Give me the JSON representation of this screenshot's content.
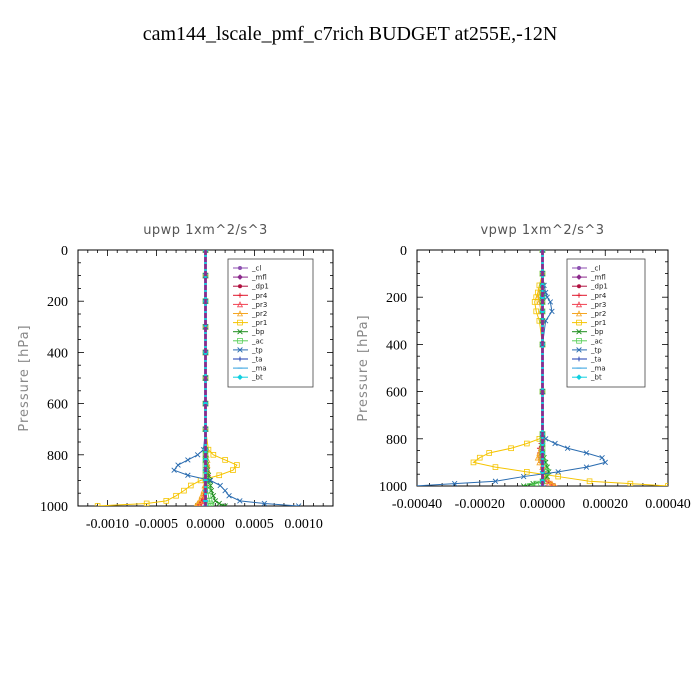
{
  "page_title": "cam144_lscale_pmf_c7rich  BUDGET at255E,-12N",
  "legend_entries": [
    {
      "label": "_cl",
      "color": "#8c4fb0",
      "marker": "dot"
    },
    {
      "label": "_mfl",
      "color": "#8c2a8c",
      "marker": "diamond"
    },
    {
      "label": "_dp1",
      "color": "#b01040",
      "marker": "dot"
    },
    {
      "label": "_pr4",
      "color": "#e0152a",
      "marker": "plus"
    },
    {
      "label": "_pr3",
      "color": "#f04050",
      "marker": "triangle"
    },
    {
      "label": "_pr2",
      "color": "#f5a623",
      "marker": "triangle"
    },
    {
      "label": "_pr1",
      "color": "#f5c400",
      "marker": "square"
    },
    {
      "label": "_bp",
      "color": "#1a8c1a",
      "marker": "x"
    },
    {
      "label": "_ac",
      "color": "#5ad05a",
      "marker": "square"
    },
    {
      "label": "_tp",
      "color": "#2a6cb0",
      "marker": "x"
    },
    {
      "label": "_ta",
      "color": "#1a3ab0",
      "marker": "plus"
    },
    {
      "label": "_ma",
      "color": "#30a0e0",
      "marker": "dash"
    },
    {
      "label": "_bt",
      "color": "#10d0e0",
      "marker": "diamond"
    }
  ],
  "chart_data": [
    {
      "type": "line",
      "title": "upwp   1xm^2/s^3",
      "ylabel": "Pressure  [hPa]",
      "xlabel": "",
      "xlim": [
        -0.0013,
        0.0013
      ],
      "ylim": [
        1000,
        0
      ],
      "xticks": [
        "-0.0010",
        "-0.0005",
        "0.0000",
        "0.0005",
        "0.0010"
      ],
      "xtick_values": [
        -0.001,
        -0.0005,
        0,
        0.0005,
        0.001
      ],
      "yticks": [
        "0",
        "200",
        "400",
        "600",
        "800",
        "1000"
      ],
      "ytick_values": [
        0,
        200,
        400,
        600,
        800,
        1000
      ],
      "legend": "top-right",
      "y": [
        0,
        100,
        200,
        300,
        400,
        500,
        600,
        700,
        780,
        800,
        820,
        840,
        860,
        880,
        900,
        920,
        940,
        960,
        980,
        990,
        1000
      ],
      "series": [
        {
          "name": "_cl",
          "values": [
            0,
            0,
            0,
            0,
            0,
            0,
            0,
            0,
            0,
            0,
            0,
            0,
            0,
            0,
            0,
            0,
            0,
            0,
            0,
            0,
            0
          ]
        },
        {
          "name": "_mfl",
          "values": [
            0,
            0,
            0,
            0,
            0,
            0,
            0,
            0,
            0,
            0,
            0,
            0,
            0,
            0,
            0,
            0,
            0,
            0,
            0,
            0,
            0
          ]
        },
        {
          "name": "_dp1",
          "values": [
            0,
            0,
            0,
            0,
            0,
            0,
            0,
            0,
            0,
            0,
            0,
            0,
            0,
            0,
            0,
            0,
            0,
            0,
            0,
            0,
            0
          ]
        },
        {
          "name": "_pr4",
          "values": [
            0,
            0,
            0,
            0,
            0,
            0,
            0,
            0,
            0,
            0,
            1e-05,
            2e-05,
            2e-05,
            3e-05,
            2e-05,
            1e-05,
            0,
            -2e-05,
            -4e-05,
            -6e-05,
            -8e-05
          ]
        },
        {
          "name": "_pr3",
          "values": [
            0,
            0,
            0,
            0,
            0,
            0,
            0,
            0,
            0,
            0,
            0,
            1e-05,
            1e-05,
            1e-05,
            1e-05,
            0,
            0,
            -1e-05,
            -2e-05,
            -3e-05,
            -5e-05
          ]
        },
        {
          "name": "_pr2",
          "values": [
            0,
            0,
            0,
            0,
            0,
            0,
            0,
            0,
            1e-05,
            1e-05,
            2e-05,
            2e-05,
            2e-05,
            1e-05,
            0,
            -1e-05,
            -2e-05,
            -4e-05,
            -6e-05,
            -8e-05,
            -0.0001
          ]
        },
        {
          "name": "_pr1",
          "values": [
            0,
            0,
            0,
            0,
            0,
            0,
            0,
            0,
            3e-05,
            8e-05,
            0.0002,
            0.00032,
            0.00028,
            0.00014,
            -5e-05,
            -0.00015,
            -0.00022,
            -0.0003,
            -0.0004,
            -0.0006,
            -0.0011
          ]
        },
        {
          "name": "_bp",
          "values": [
            0,
            0,
            0,
            0,
            0,
            0,
            0,
            0,
            0,
            0,
            0,
            1e-05,
            2e-05,
            3e-05,
            4e-05,
            5e-05,
            6e-05,
            8e-05,
            0.0001,
            0.00014,
            0.0002
          ]
        },
        {
          "name": "_ac",
          "values": [
            0,
            0,
            0,
            0,
            0,
            0,
            0,
            0,
            0,
            0,
            0,
            0,
            0,
            0,
            1e-05,
            2e-05,
            2e-05,
            3e-05,
            4e-05,
            5e-05,
            6e-05
          ]
        },
        {
          "name": "_tp",
          "values": [
            0,
            0,
            0,
            0,
            0,
            0,
            0,
            0,
            -2e-05,
            -8e-05,
            -0.00018,
            -0.00028,
            -0.00032,
            -0.00018,
            5e-05,
            0.00015,
            0.0002,
            0.00024,
            0.00035,
            0.0006,
            0.00095
          ]
        },
        {
          "name": "_ta",
          "values": [
            0,
            0,
            0,
            0,
            0,
            0,
            0,
            0,
            0,
            0,
            0,
            0,
            0,
            0,
            0,
            0,
            0,
            0,
            0,
            0,
            0
          ]
        },
        {
          "name": "_ma",
          "values": [
            0,
            0,
            0,
            0,
            0,
            0,
            0,
            0,
            0,
            0,
            0,
            0,
            0,
            0,
            0,
            0,
            0,
            0,
            0,
            0,
            0
          ]
        },
        {
          "name": "_bt",
          "values": [
            0,
            0,
            0,
            0,
            0,
            0,
            0,
            0,
            0,
            0,
            0,
            0,
            0,
            0,
            0,
            0,
            0,
            0,
            0,
            0,
            0
          ]
        }
      ]
    },
    {
      "type": "line",
      "title": "vpwp   1xm^2/s^3",
      "ylabel": "Pressure  [hPa]",
      "xlabel": "",
      "xlim": [
        -0.0004,
        0.0004
      ],
      "ylim": [
        1000,
        0
      ],
      "xticks": [
        "-0.00040",
        "-0.00020",
        "0.00000",
        "0.00020",
        "0.00040"
      ],
      "xtick_values": [
        -0.0004,
        -0.0002,
        0,
        0.0002,
        0.0004
      ],
      "yticks": [
        "0",
        "200",
        "400",
        "600",
        "800",
        "1000"
      ],
      "ytick_values": [
        0,
        200,
        400,
        600,
        800,
        1000
      ],
      "legend": "top-right",
      "y": [
        0,
        100,
        150,
        180,
        200,
        220,
        260,
        300,
        400,
        600,
        780,
        800,
        820,
        840,
        860,
        880,
        900,
        920,
        940,
        960,
        980,
        990,
        1000
      ],
      "series": [
        {
          "name": "_cl",
          "values": [
            0,
            0,
            0,
            0,
            0,
            0,
            0,
            0,
            0,
            0,
            0,
            0,
            0,
            0,
            0,
            0,
            0,
            0,
            0,
            0,
            0,
            0,
            0
          ]
        },
        {
          "name": "_mfl",
          "values": [
            0,
            0,
            0,
            0,
            0,
            0,
            0,
            0,
            0,
            0,
            0,
            0,
            0,
            0,
            0,
            0,
            0,
            0,
            0,
            0,
            0,
            0,
            0
          ]
        },
        {
          "name": "_dp1",
          "values": [
            0,
            0,
            0,
            0,
            0,
            0,
            0,
            0,
            0,
            0,
            0,
            0,
            0,
            0,
            0,
            0,
            0,
            0,
            0,
            0,
            0,
            0,
            0
          ]
        },
        {
          "name": "_pr4",
          "values": [
            0,
            0,
            0,
            0,
            0,
            0,
            0,
            0,
            0,
            0,
            0,
            0,
            -5e-06,
            -1e-05,
            -1e-05,
            -8e-06,
            -5e-06,
            0,
            5e-06,
            1e-05,
            2e-05,
            3e-05,
            4e-05
          ]
        },
        {
          "name": "_pr3",
          "values": [
            0,
            0,
            0,
            0,
            0,
            0,
            0,
            0,
            0,
            0,
            0,
            0,
            0,
            -5e-06,
            -5e-06,
            -5e-06,
            0,
            0,
            5e-06,
            1e-05,
            1e-05,
            2e-05,
            3e-05
          ]
        },
        {
          "name": "_pr2",
          "values": [
            0,
            0,
            -5e-06,
            -1e-05,
            -1.5e-05,
            -1e-05,
            -5e-06,
            0,
            0,
            0,
            0,
            0,
            0,
            -5e-06,
            -1e-05,
            -1.5e-05,
            -1e-05,
            0,
            5e-06,
            1e-05,
            2e-05,
            3e-05,
            4e-05
          ]
        },
        {
          "name": "_pr1",
          "values": [
            0,
            0,
            -1e-05,
            -1.5e-05,
            -2e-05,
            -2.5e-05,
            -2e-05,
            -1e-05,
            0,
            0,
            0,
            -1e-05,
            -5e-05,
            -0.0001,
            -0.00017,
            -0.0002,
            -0.00022,
            -0.00015,
            -5e-05,
            5e-05,
            0.00015,
            0.00028,
            0.0004
          ]
        },
        {
          "name": "_bp",
          "values": [
            0,
            0,
            0,
            0,
            0,
            0,
            0,
            0,
            0,
            0,
            0,
            0,
            0,
            0,
            0,
            5e-06,
            1e-05,
            1.5e-05,
            2e-05,
            1.5e-05,
            0,
            -3e-05,
            -6e-05
          ]
        },
        {
          "name": "_ac",
          "values": [
            0,
            0,
            0,
            0,
            0,
            0,
            0,
            0,
            0,
            0,
            0,
            0,
            0,
            0,
            0,
            0,
            5e-06,
            1e-05,
            1.5e-05,
            1e-05,
            0,
            -2e-05,
            -4e-05
          ]
        },
        {
          "name": "_tp",
          "values": [
            0,
            0,
            5e-06,
            1e-05,
            1.5e-05,
            2.5e-05,
            3e-05,
            1e-05,
            0,
            0,
            0,
            1e-05,
            4e-05,
            8e-05,
            0.00014,
            0.00019,
            0.0002,
            0.00014,
            5e-05,
            -6e-05,
            -0.00015,
            -0.00028,
            -0.00041
          ]
        },
        {
          "name": "_ta",
          "values": [
            0,
            0,
            0,
            0,
            0,
            0,
            0,
            0,
            0,
            0,
            0,
            0,
            0,
            0,
            0,
            0,
            0,
            0,
            0,
            0,
            0,
            0,
            0
          ]
        },
        {
          "name": "_ma",
          "values": [
            0,
            0,
            0,
            0,
            0,
            0,
            0,
            0,
            0,
            0,
            0,
            0,
            0,
            0,
            0,
            0,
            0,
            0,
            0,
            0,
            0,
            0,
            0
          ]
        },
        {
          "name": "_bt",
          "values": [
            0,
            0,
            0,
            0,
            0,
            0,
            0,
            0,
            0,
            0,
            0,
            0,
            0,
            0,
            0,
            0,
            0,
            0,
            0,
            0,
            0,
            0,
            0
          ]
        }
      ]
    }
  ]
}
